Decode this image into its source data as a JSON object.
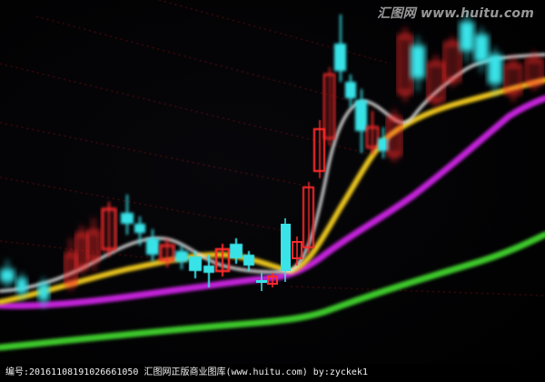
{
  "watermark": {
    "text": "汇图网 www.huitu.com"
  },
  "caption": {
    "text": "编号:20161108191026661050  汇图网正版商业图库(www.huitu.com) by:zyckek1"
  },
  "colors": {
    "background": "#000000",
    "candle_up": "#ff2a2a",
    "candle_down": "#39e3e8",
    "ma_white": "#eaeaea",
    "ma_yellow": "#e8c21d",
    "ma_magenta": "#c224d8",
    "ma_green": "#3cc82b",
    "gridline": "#b01818"
  }
}
